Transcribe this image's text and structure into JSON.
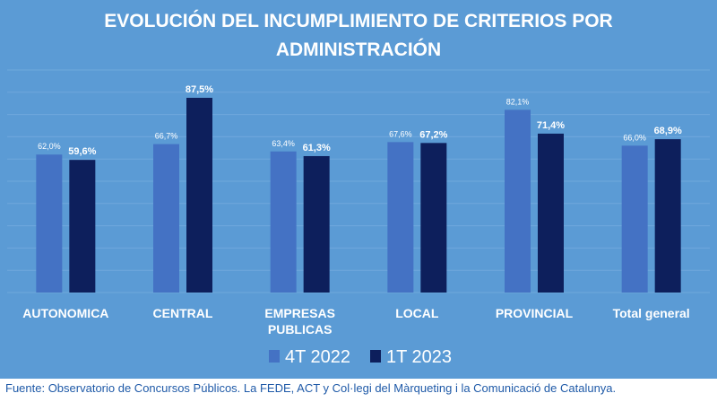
{
  "colors": {
    "background": "#5b9bd5",
    "grid": "#6fa8dc",
    "series_4t2022": "#4472c4",
    "series_1t2023": "#0d1f5c",
    "text": "#ffffff",
    "source_text": "#1f5aa8"
  },
  "source": "Fuente: Observatorio de Concursos Públicos. La FEDE, ACT y Col·legi del Màrqueting i la Comunicació de Catalunya.",
  "chart_data": {
    "type": "bar",
    "title": [
      "EVOLUCIÓN DEL INCUMPLIMIENTO DE CRITERIOS POR",
      "ADMINISTRACIÓN"
    ],
    "categories": [
      [
        "AUTONOMICA"
      ],
      [
        "CENTRAL"
      ],
      [
        "EMPRESAS",
        "PUBLICAS"
      ],
      [
        "LOCAL"
      ],
      [
        "PROVINCIAL"
      ],
      [
        "Total general"
      ]
    ],
    "series": [
      {
        "name": "4T 2022",
        "values": [
          62.0,
          66.7,
          63.4,
          67.6,
          82.1,
          66.0
        ],
        "labels": [
          "62,0%",
          "66,7%",
          "63,4%",
          "67,6%",
          "82,1%",
          "66,0%"
        ]
      },
      {
        "name": "1T 2023",
        "values": [
          59.6,
          87.5,
          61.3,
          67.2,
          71.4,
          68.9
        ],
        "labels": [
          "59,6%",
          "87,5%",
          "61,3%",
          "67,2%",
          "71,4%",
          "68,9%"
        ]
      }
    ],
    "ylim": [
      0,
      100
    ],
    "grid": true,
    "legend_position": "bottom-center",
    "xlabel": "",
    "ylabel": ""
  }
}
